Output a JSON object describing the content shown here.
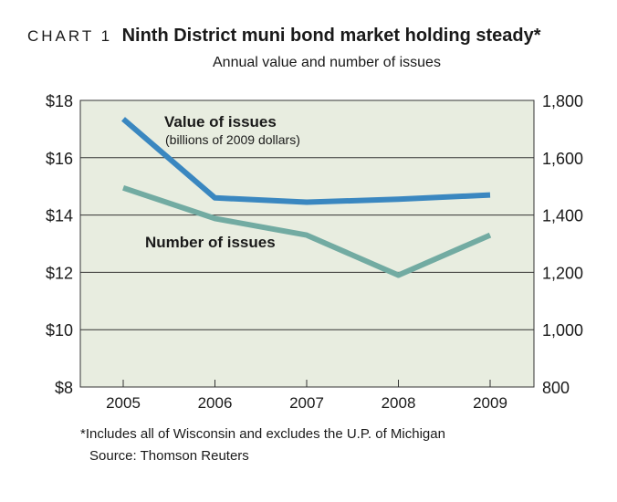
{
  "header": {
    "chart_label": "CHART 1",
    "title": "Ninth District muni bond market holding steady*",
    "subtitle": "Annual value and number of issues"
  },
  "footer": {
    "note": "*Includes all of Wisconsin and excludes the U.P. of Michigan",
    "source": "Source: Thomson Reuters"
  },
  "chart_data": {
    "type": "line",
    "title": "Ninth District muni bond market holding steady*",
    "subtitle": "Annual value and number of issues",
    "x": [
      "2005",
      "2006",
      "2007",
      "2008",
      "2009"
    ],
    "left_axis": {
      "ylim": [
        8,
        18
      ],
      "ticks": [
        8,
        10,
        12,
        14,
        16,
        18
      ],
      "tick_labels": [
        "$8",
        "$10",
        "$12",
        "$14",
        "$16",
        "$18"
      ]
    },
    "right_axis": {
      "ylim": [
        800,
        1800
      ],
      "ticks": [
        800,
        1000,
        1200,
        1400,
        1600,
        1800
      ],
      "tick_labels": [
        "800",
        "1,000",
        "1,200",
        "1,400",
        "1,600",
        "1,800"
      ]
    },
    "series": [
      {
        "name": "Value of issues",
        "sublabel": "(billions of 2009 dollars)",
        "axis": "left",
        "color": "#3a87c0",
        "values": [
          17.35,
          14.6,
          14.45,
          14.55,
          14.7
        ]
      },
      {
        "name": "Number of issues",
        "axis": "right",
        "color": "#72aba2",
        "values": [
          1495,
          1388,
          1330,
          1190,
          1330
        ]
      }
    ],
    "plot_background": "#e8ede0",
    "grid": true
  }
}
